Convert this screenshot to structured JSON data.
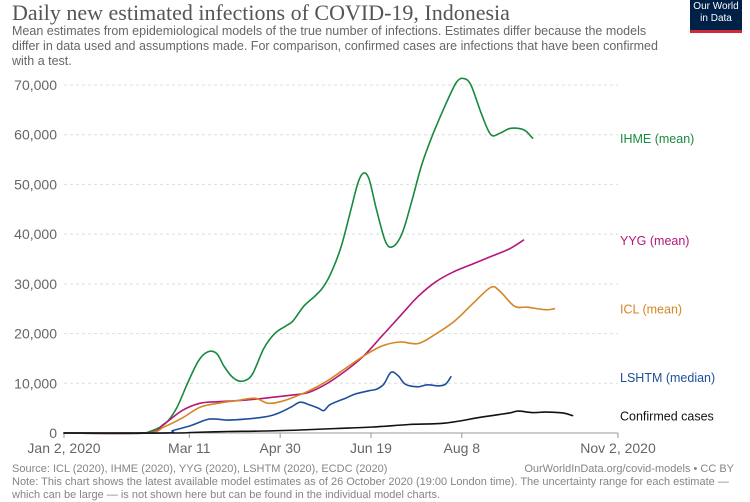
{
  "header": {
    "title": "Daily new estimated infections of COVID-19, Indonesia",
    "subtitle": "Mean estimates from epidemiological models of the true number of infections. Estimates differ because the models differ in data used and assumptions made. For comparison, confirmed cases are infections that have been confirmed with a test.",
    "logo_line1": "Our World",
    "logo_line2": "in Data"
  },
  "footer": {
    "source": "Source: ICL (2020), IHME (2020), YYG (2020), LSHTM (2020), ECDC (2020)",
    "link": "OurWorldInData.org/covid-models • CC BY",
    "note": "Note: This chart shows the latest available model estimates as of 26 October 2020 (19:00 London time). The uncertainty range for each estimate — which can be large — is not shown here but can be found in the individual model charts."
  },
  "chart_data": {
    "type": "line",
    "title": "Daily new estimated infections of COVID-19, Indonesia",
    "x_unit": "days since Jan 2, 2020",
    "xlim": [
      0,
      305
    ],
    "ylim": [
      0,
      70000
    ],
    "x_ticks": [
      {
        "day": 0,
        "label": "Jan 2, 2020"
      },
      {
        "day": 69,
        "label": "Mar 11"
      },
      {
        "day": 119,
        "label": "Apr 30"
      },
      {
        "day": 169,
        "label": "Jun 19"
      },
      {
        "day": 219,
        "label": "Aug 8"
      },
      {
        "day": 305,
        "label": "Nov 2, 2020"
      }
    ],
    "y_ticks": [
      {
        "value": 0,
        "label": "0"
      },
      {
        "value": 10000,
        "label": "10,000"
      },
      {
        "value": 20000,
        "label": "20,000"
      },
      {
        "value": 30000,
        "label": "30,000"
      },
      {
        "value": 40000,
        "label": "40,000"
      },
      {
        "value": 50000,
        "label": "50,000"
      },
      {
        "value": 60000,
        "label": "60,000"
      },
      {
        "value": 70000,
        "label": "70,000"
      }
    ],
    "grid": true,
    "series": [
      {
        "name": "IHME (mean)",
        "color": "#178a3f",
        "points": [
          [
            0,
            0
          ],
          [
            40,
            0
          ],
          [
            48,
            400
          ],
          [
            56,
            2000
          ],
          [
            62,
            5000
          ],
          [
            68,
            10000
          ],
          [
            74,
            14500
          ],
          [
            79,
            16300
          ],
          [
            84,
            16000
          ],
          [
            88,
            13500
          ],
          [
            92,
            11500
          ],
          [
            96,
            10500
          ],
          [
            100,
            10600
          ],
          [
            104,
            12000
          ],
          [
            110,
            17000
          ],
          [
            116,
            20000
          ],
          [
            122,
            21500
          ],
          [
            126,
            22500
          ],
          [
            132,
            25500
          ],
          [
            138,
            27500
          ],
          [
            143,
            29500
          ],
          [
            148,
            33000
          ],
          [
            153,
            38000
          ],
          [
            158,
            45000
          ],
          [
            162,
            50500
          ],
          [
            165,
            52300
          ],
          [
            168,
            51000
          ],
          [
            172,
            45000
          ],
          [
            177,
            38500
          ],
          [
            181,
            37500
          ],
          [
            186,
            40000
          ],
          [
            191,
            46000
          ],
          [
            197,
            54000
          ],
          [
            203,
            60000
          ],
          [
            210,
            66000
          ],
          [
            216,
            70500
          ],
          [
            220,
            71300
          ],
          [
            224,
            70000
          ],
          [
            230,
            64000
          ],
          [
            235,
            60000
          ],
          [
            240,
            60300
          ],
          [
            245,
            61200
          ],
          [
            250,
            61300
          ],
          [
            254,
            60800
          ],
          [
            258,
            59300
          ]
        ]
      },
      {
        "name": "YYG (mean)",
        "color": "#b4187a",
        "points": [
          [
            0,
            0
          ],
          [
            45,
            0
          ],
          [
            55,
            1800
          ],
          [
            65,
            4500
          ],
          [
            75,
            6000
          ],
          [
            85,
            6300
          ],
          [
            95,
            6500
          ],
          [
            105,
            6800
          ],
          [
            115,
            7200
          ],
          [
            125,
            7600
          ],
          [
            135,
            8200
          ],
          [
            145,
            10000
          ],
          [
            155,
            12500
          ],
          [
            165,
            15500
          ],
          [
            175,
            19500
          ],
          [
            185,
            23500
          ],
          [
            195,
            27500
          ],
          [
            205,
            30500
          ],
          [
            215,
            32500
          ],
          [
            225,
            34000
          ],
          [
            235,
            35500
          ],
          [
            245,
            37000
          ],
          [
            253,
            38800
          ]
        ]
      },
      {
        "name": "ICL (mean)",
        "color": "#d58624",
        "points": [
          [
            0,
            0
          ],
          [
            45,
            0
          ],
          [
            55,
            1200
          ],
          [
            65,
            3000
          ],
          [
            75,
            5200
          ],
          [
            85,
            6000
          ],
          [
            95,
            6500
          ],
          [
            105,
            7000
          ],
          [
            112,
            6000
          ],
          [
            118,
            6200
          ],
          [
            125,
            7000
          ],
          [
            135,
            8500
          ],
          [
            145,
            10500
          ],
          [
            155,
            13000
          ],
          [
            165,
            15500
          ],
          [
            175,
            17500
          ],
          [
            185,
            18300
          ],
          [
            195,
            18000
          ],
          [
            205,
            20000
          ],
          [
            215,
            22500
          ],
          [
            225,
            26000
          ],
          [
            235,
            29300
          ],
          [
            240,
            28500
          ],
          [
            248,
            25500
          ],
          [
            255,
            25300
          ],
          [
            265,
            24800
          ],
          [
            270,
            25000
          ]
        ]
      },
      {
        "name": "LSHTM (median)",
        "color": "#1f4f9c",
        "points": [
          [
            0,
            0
          ],
          [
            55,
            0
          ],
          [
            60,
            500
          ],
          [
            70,
            1500
          ],
          [
            80,
            2800
          ],
          [
            90,
            2600
          ],
          [
            100,
            2800
          ],
          [
            110,
            3200
          ],
          [
            115,
            3600
          ],
          [
            120,
            4300
          ],
          [
            125,
            5200
          ],
          [
            130,
            6200
          ],
          [
            135,
            5700
          ],
          [
            140,
            5000
          ],
          [
            143,
            4500
          ],
          [
            146,
            5600
          ],
          [
            150,
            6300
          ],
          [
            155,
            7000
          ],
          [
            160,
            7800
          ],
          [
            168,
            8500
          ],
          [
            172,
            8800
          ],
          [
            176,
            9800
          ],
          [
            180,
            12200
          ],
          [
            184,
            11500
          ],
          [
            188,
            9800
          ],
          [
            195,
            9300
          ],
          [
            200,
            9700
          ],
          [
            206,
            9500
          ],
          [
            210,
            9800
          ],
          [
            213,
            11300
          ]
        ]
      },
      {
        "name": "Confirmed cases",
        "color": "#111111",
        "points": [
          [
            0,
            0
          ],
          [
            60,
            0
          ],
          [
            70,
            100
          ],
          [
            90,
            300
          ],
          [
            110,
            400
          ],
          [
            130,
            600
          ],
          [
            150,
            900
          ],
          [
            170,
            1200
          ],
          [
            190,
            1700
          ],
          [
            210,
            2000
          ],
          [
            230,
            3200
          ],
          [
            245,
            4000
          ],
          [
            250,
            4400
          ],
          [
            258,
            4100
          ],
          [
            265,
            4200
          ],
          [
            275,
            4000
          ],
          [
            280,
            3500
          ]
        ]
      }
    ]
  }
}
